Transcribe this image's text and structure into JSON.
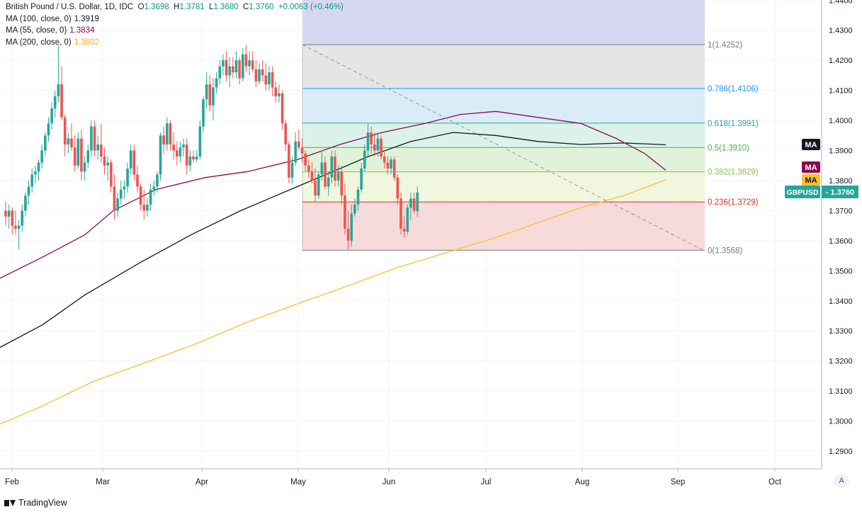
{
  "legend": {
    "title": "British Pound / U.S. Dollar, 1D, IDC",
    "ohlc": {
      "o_label": "O",
      "o": "1.3698",
      "h_label": "H",
      "h": "1.3781",
      "l_label": "L",
      "l": "1.3680",
      "c_label": "C",
      "c": "1.3760",
      "change": "+0.0063 (+0.46%)"
    },
    "ma100": {
      "label": "MA (100, close, 0)",
      "value": "1.3919"
    },
    "ma55": {
      "label": "MA (55, close, 0)",
      "value": "1.3834"
    },
    "ma200": {
      "label": "MA (200, close, 0)",
      "value": "1.3802"
    }
  },
  "colors": {
    "up": "#26a69a",
    "down": "#ef5350",
    "ma100": "#131722",
    "ma55": "#880e4f",
    "ma200": "#fbc02d",
    "grid": "#f0f3fa",
    "axis_text": "#131722",
    "price_badge": "#26a69a"
  },
  "footer": {
    "brand": "TradingView",
    "auto_button": "A"
  },
  "chart_data": {
    "type": "candlestick",
    "symbol": "GBPUSD",
    "timeframe": "1D",
    "x_ticks": [
      "Feb",
      "Mar",
      "Apr",
      "May",
      "Jun",
      "Jul",
      "Aug",
      "Sep",
      "Oct"
    ],
    "y_ticks": [
      "1.2900",
      "1.3000",
      "1.3100",
      "1.3200",
      "1.3300",
      "1.3400",
      "1.3500",
      "1.3600",
      "1.3700",
      "1.3800",
      "1.3900",
      "1.4000",
      "1.4100",
      "1.4200",
      "1.4300",
      "1.4400"
    ],
    "ylim": [
      1.285,
      1.445
    ],
    "last_price": {
      "label": "GBPUSD",
      "value": "1.3760",
      "price": 1.376
    },
    "ma_badges": [
      {
        "label": "MA",
        "price": 1.3919,
        "color": "#131722"
      },
      {
        "label": "MA",
        "price": 1.3834,
        "color": "#880e4f"
      },
      {
        "label": "MA",
        "price": 1.3802,
        "color": "#fbc02d"
      }
    ],
    "fibonacci": {
      "high": 1.4252,
      "low": 1.3568,
      "levels": [
        {
          "ratio": 1,
          "label": "1(1.4252)",
          "price": 1.4252,
          "color": "#787b86",
          "fill": "#e0e0e0"
        },
        {
          "ratio": 0.786,
          "label": "0.786(1.4106)",
          "price": 1.4106,
          "color": "#2196f3",
          "fill": "#d3e9f7"
        },
        {
          "ratio": 0.618,
          "label": "0.618(1.3991)",
          "price": 1.3991,
          "color": "#26a69a",
          "fill": "#d5f0e6"
        },
        {
          "ratio": 0.5,
          "label": "0.5(1.3910)",
          "price": 1.391,
          "color": "#4caf50",
          "fill": "#dbf1d3"
        },
        {
          "ratio": 0.382,
          "label": "0.382(1.3829)",
          "price": 1.3829,
          "color": "#8bc34a",
          "fill": "#eef6d8"
        },
        {
          "ratio": 0.236,
          "label": "0.236(1.3729)",
          "price": 1.3729,
          "color": "#d32f2f",
          "fill": "#f6d4d4"
        },
        {
          "ratio": 0,
          "label": "0(1.3568)",
          "price": 1.3568,
          "color": "#787b86",
          "fill": ""
        }
      ],
      "extension_fill": "#d1d4f0"
    },
    "candles": [
      [
        1.37,
        1.373,
        1.365,
        1.368
      ],
      [
        1.368,
        1.372,
        1.364,
        1.37
      ],
      [
        1.37,
        1.371,
        1.362,
        1.365
      ],
      [
        1.365,
        1.37,
        1.362,
        1.364
      ],
      [
        1.364,
        1.367,
        1.357,
        1.365
      ],
      [
        1.365,
        1.372,
        1.363,
        1.37
      ],
      [
        1.37,
        1.376,
        1.368,
        1.375
      ],
      [
        1.375,
        1.38,
        1.372,
        1.378
      ],
      [
        1.378,
        1.384,
        1.376,
        1.382
      ],
      [
        1.382,
        1.385,
        1.379,
        1.383
      ],
      [
        1.383,
        1.387,
        1.38,
        1.386
      ],
      [
        1.386,
        1.392,
        1.384,
        1.39
      ],
      [
        1.39,
        1.396,
        1.388,
        1.395
      ],
      [
        1.395,
        1.401,
        1.393,
        1.399
      ],
      [
        1.399,
        1.406,
        1.397,
        1.404
      ],
      [
        1.404,
        1.41,
        1.401,
        1.408
      ],
      [
        1.408,
        1.425,
        1.406,
        1.412
      ],
      [
        1.412,
        1.418,
        1.4,
        1.401
      ],
      [
        1.401,
        1.402,
        1.388,
        1.392
      ],
      [
        1.392,
        1.396,
        1.389,
        1.394
      ],
      [
        1.394,
        1.399,
        1.39,
        1.391
      ],
      [
        1.391,
        1.395,
        1.383,
        1.385
      ],
      [
        1.385,
        1.396,
        1.384,
        1.394
      ],
      [
        1.394,
        1.397,
        1.38,
        1.383
      ],
      [
        1.383,
        1.388,
        1.38,
        1.386
      ],
      [
        1.386,
        1.392,
        1.384,
        1.39
      ],
      [
        1.39,
        1.4,
        1.388,
        1.398
      ],
      [
        1.398,
        1.4,
        1.388,
        1.39
      ],
      [
        1.39,
        1.395,
        1.387,
        1.392
      ],
      [
        1.392,
        1.399,
        1.386,
        1.388
      ],
      [
        1.388,
        1.391,
        1.382,
        1.385
      ],
      [
        1.385,
        1.388,
        1.38,
        1.386
      ],
      [
        1.386,
        1.387,
        1.376,
        1.378
      ],
      [
        1.378,
        1.382,
        1.367,
        1.37
      ],
      [
        1.37,
        1.376,
        1.368,
        1.374
      ],
      [
        1.374,
        1.38,
        1.372,
        1.377
      ],
      [
        1.377,
        1.38,
        1.374,
        1.378
      ],
      [
        1.378,
        1.386,
        1.376,
        1.384
      ],
      [
        1.384,
        1.392,
        1.382,
        1.39
      ],
      [
        1.39,
        1.392,
        1.38,
        1.382
      ],
      [
        1.382,
        1.385,
        1.376,
        1.378
      ],
      [
        1.378,
        1.379,
        1.37,
        1.372
      ],
      [
        1.372,
        1.377,
        1.367,
        1.37
      ],
      [
        1.37,
        1.374,
        1.368,
        1.372
      ],
      [
        1.372,
        1.379,
        1.37,
        1.377
      ],
      [
        1.377,
        1.38,
        1.375,
        1.378
      ],
      [
        1.378,
        1.383,
        1.376,
        1.382
      ],
      [
        1.382,
        1.396,
        1.38,
        1.395
      ],
      [
        1.395,
        1.398,
        1.389,
        1.392
      ],
      [
        1.392,
        1.401,
        1.39,
        1.399
      ],
      [
        1.399,
        1.4,
        1.39,
        1.392
      ],
      [
        1.392,
        1.396,
        1.387,
        1.39
      ],
      [
        1.39,
        1.393,
        1.385,
        1.388
      ],
      [
        1.388,
        1.393,
        1.386,
        1.391
      ],
      [
        1.391,
        1.394,
        1.388,
        1.392
      ],
      [
        1.392,
        1.394,
        1.382,
        1.385
      ],
      [
        1.385,
        1.39,
        1.383,
        1.388
      ],
      [
        1.388,
        1.39,
        1.386,
        1.387
      ],
      [
        1.387,
        1.39,
        1.386,
        1.388
      ],
      [
        1.388,
        1.4,
        1.387,
        1.398
      ],
      [
        1.398,
        1.408,
        1.396,
        1.407
      ],
      [
        1.407,
        1.416,
        1.404,
        1.412
      ],
      [
        1.412,
        1.415,
        1.403,
        1.405
      ],
      [
        1.405,
        1.414,
        1.4,
        1.411
      ],
      [
        1.411,
        1.416,
        1.409,
        1.414
      ],
      [
        1.414,
        1.42,
        1.412,
        1.418
      ],
      [
        1.418,
        1.422,
        1.415,
        1.42
      ],
      [
        1.42,
        1.423,
        1.413,
        1.415
      ],
      [
        1.415,
        1.421,
        1.411,
        1.418
      ],
      [
        1.418,
        1.421,
        1.414,
        1.416
      ],
      [
        1.416,
        1.423,
        1.414,
        1.42
      ],
      [
        1.42,
        1.421,
        1.412,
        1.414
      ],
      [
        1.414,
        1.424,
        1.413,
        1.422
      ],
      [
        1.422,
        1.425,
        1.416,
        1.418
      ],
      [
        1.418,
        1.423,
        1.415,
        1.42
      ],
      [
        1.42,
        1.423,
        1.416,
        1.417
      ],
      [
        1.417,
        1.42,
        1.411,
        1.413
      ],
      [
        1.413,
        1.419,
        1.412,
        1.417
      ],
      [
        1.417,
        1.42,
        1.413,
        1.415
      ],
      [
        1.415,
        1.419,
        1.41,
        1.412
      ],
      [
        1.412,
        1.418,
        1.41,
        1.416
      ],
      [
        1.416,
        1.418,
        1.408,
        1.411
      ],
      [
        1.411,
        1.413,
        1.406,
        1.408
      ],
      [
        1.408,
        1.412,
        1.406,
        1.409
      ],
      [
        1.409,
        1.41,
        1.397,
        1.399
      ],
      [
        1.399,
        1.4,
        1.39,
        1.392
      ],
      [
        1.392,
        1.393,
        1.379,
        1.381
      ],
      [
        1.381,
        1.388,
        1.379,
        1.386
      ],
      [
        1.386,
        1.396,
        1.385,
        1.393
      ],
      [
        1.393,
        1.397,
        1.39,
        1.391
      ],
      [
        1.391,
        1.394,
        1.386,
        1.389
      ],
      [
        1.389,
        1.39,
        1.383,
        1.385
      ],
      [
        1.385,
        1.387,
        1.381,
        1.383
      ],
      [
        1.383,
        1.386,
        1.379,
        1.38
      ],
      [
        1.38,
        1.384,
        1.373,
        1.375
      ],
      [
        1.375,
        1.383,
        1.374,
        1.382
      ],
      [
        1.382,
        1.39,
        1.38,
        1.386
      ],
      [
        1.386,
        1.388,
        1.377,
        1.378
      ],
      [
        1.378,
        1.383,
        1.375,
        1.381
      ],
      [
        1.381,
        1.39,
        1.379,
        1.388
      ],
      [
        1.388,
        1.39,
        1.378,
        1.38
      ],
      [
        1.38,
        1.385,
        1.378,
        1.383
      ],
      [
        1.383,
        1.385,
        1.372,
        1.375
      ],
      [
        1.375,
        1.379,
        1.362,
        1.364
      ],
      [
        1.364,
        1.37,
        1.357,
        1.36
      ],
      [
        1.36,
        1.372,
        1.358,
        1.369
      ],
      [
        1.369,
        1.374,
        1.368,
        1.372
      ],
      [
        1.372,
        1.378,
        1.37,
        1.377
      ],
      [
        1.377,
        1.386,
        1.376,
        1.384
      ],
      [
        1.384,
        1.392,
        1.383,
        1.39
      ],
      [
        1.39,
        1.399,
        1.388,
        1.396
      ],
      [
        1.396,
        1.398,
        1.389,
        1.392
      ],
      [
        1.392,
        1.396,
        1.388,
        1.39
      ],
      [
        1.39,
        1.396,
        1.388,
        1.394
      ],
      [
        1.394,
        1.395,
        1.387,
        1.388
      ],
      [
        1.388,
        1.39,
        1.384,
        1.386
      ],
      [
        1.386,
        1.388,
        1.382,
        1.384
      ],
      [
        1.384,
        1.388,
        1.382,
        1.387
      ],
      [
        1.387,
        1.388,
        1.38,
        1.381
      ],
      [
        1.381,
        1.382,
        1.372,
        1.374
      ],
      [
        1.374,
        1.376,
        1.362,
        1.364
      ],
      [
        1.364,
        1.368,
        1.361,
        1.363
      ],
      [
        1.363,
        1.372,
        1.362,
        1.371
      ],
      [
        1.371,
        1.376,
        1.367,
        1.374
      ],
      [
        1.374,
        1.376,
        1.369,
        1.37
      ],
      [
        1.3698,
        1.3781,
        1.368,
        1.376
      ]
    ]
  }
}
